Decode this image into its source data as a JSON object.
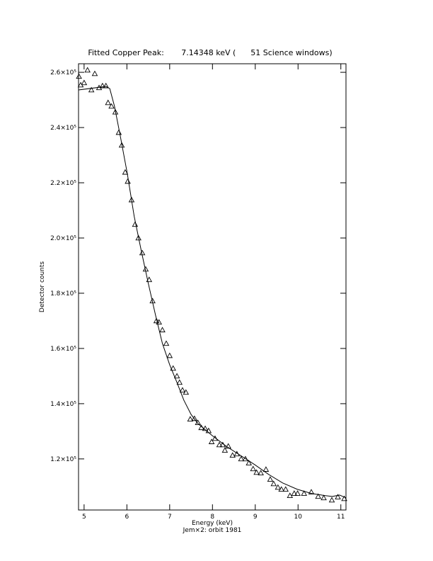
{
  "chart_data": {
    "type": "scatter",
    "title": "Fitted Copper Peak:       7.14348 keV (      51 Science windows)",
    "x_label": "Energy (keV)",
    "subtitle": "Jem×2: orbit 1981",
    "y_label": "Detector counts",
    "xlim": [
      4.87,
      11.12
    ],
    "xticks": [
      5,
      6,
      7,
      8,
      9,
      10,
      11
    ],
    "ylim": [
      101500,
      263100
    ],
    "yticks": [
      {
        "value": 120000,
        "label": "1.2×10⁵"
      },
      {
        "value": 140000,
        "label": "1.4×10⁵"
      },
      {
        "value": 160000,
        "label": "1.6×10⁵"
      },
      {
        "value": 180000,
        "label": "1.8×10⁵"
      },
      {
        "value": 200000,
        "label": "2.0×10⁵"
      },
      {
        "value": 220000,
        "label": "2.2×10⁵"
      },
      {
        "value": 240000,
        "label": "2.4×10⁵"
      },
      {
        "value": 260000,
        "label": "2.6×10⁵"
      }
    ],
    "series": [
      {
        "type": "scatter",
        "color": "#000000",
        "x": [
          4.88,
          4.92,
          5.0,
          5.08,
          5.17,
          5.25,
          5.35,
          5.43,
          5.51,
          5.56,
          5.64,
          5.73,
          5.81,
          5.88,
          5.96,
          6.02,
          6.11,
          6.19,
          6.27,
          6.36,
          6.44,
          6.52,
          6.6,
          6.69,
          6.75,
          6.83,
          6.92,
          7.0,
          7.08,
          7.17,
          7.23,
          7.3,
          7.38,
          7.48,
          7.58,
          7.66,
          7.74,
          7.83,
          7.91,
          7.98,
          8.06,
          8.16,
          8.24,
          8.29,
          8.37,
          8.47,
          8.57,
          8.67,
          8.77,
          8.85,
          8.95,
          9.03,
          9.13,
          9.25,
          9.35,
          9.43,
          9.53,
          9.61,
          9.71,
          9.81,
          9.91,
          9.99,
          10.14,
          10.31,
          10.47,
          10.6,
          10.79,
          10.93,
          11.08
        ],
        "values": [
          258500,
          255400,
          256200,
          260800,
          253600,
          259500,
          254400,
          255100,
          255100,
          249000,
          247700,
          245600,
          238200,
          233600,
          223800,
          220500,
          213800,
          204900,
          200000,
          194600,
          188700,
          184900,
          177200,
          170000,
          169500,
          166700,
          161800,
          157400,
          152800,
          150000,
          147700,
          144900,
          144100,
          134400,
          134600,
          133100,
          131300,
          131000,
          130200,
          126200,
          127400,
          125100,
          125100,
          123100,
          124600,
          121300,
          121800,
          120000,
          120000,
          118500,
          116400,
          115100,
          114900,
          116200,
          112600,
          111000,
          109700,
          109000,
          109000,
          106700,
          107500,
          107500,
          107500,
          108000,
          106400,
          105900,
          105100,
          106200,
          105600
        ]
      },
      {
        "type": "line",
        "color": "#000000",
        "x": [
          4.87,
          5.51,
          5.6,
          5.71,
          5.84,
          6.01,
          6.17,
          6.34,
          6.5,
          6.67,
          6.83,
          7.0,
          7.17,
          7.33,
          7.5,
          7.66,
          7.99,
          8.32,
          8.65,
          8.98,
          9.31,
          9.64,
          9.98,
          10.31,
          10.64,
          10.8,
          10.97,
          11.12
        ],
        "values": [
          253600,
          254900,
          254100,
          247700,
          237400,
          223300,
          207900,
          195100,
          183600,
          172000,
          161800,
          154100,
          147700,
          141300,
          136100,
          132800,
          128500,
          124600,
          121300,
          118000,
          114400,
          111300,
          109000,
          107500,
          106700,
          106400,
          106900,
          105900
        ]
      }
    ]
  }
}
